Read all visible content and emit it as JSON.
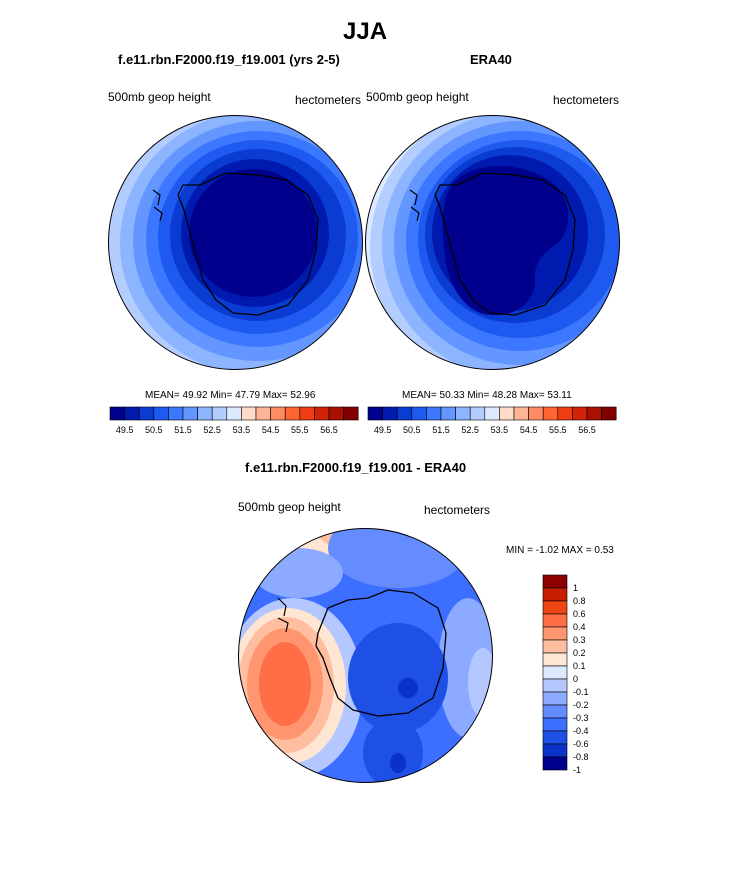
{
  "season": "JJA",
  "panels": [
    {
      "title": "f.e11.rbn.F2000.f19_f19.001 (yrs 2-5)",
      "variable": "500mb geop height",
      "units": "hectometers",
      "stats": {
        "mean_label": "MEAN=",
        "mean": "49.92",
        "min_label": "Min=",
        "min": "47.79",
        "max_label": "Max=",
        "max": "52.96"
      }
    },
    {
      "title": "ERA40",
      "variable": "500mb geop height",
      "units": "hectometers",
      "stats": {
        "mean_label": "MEAN=",
        "mean": "50.33",
        "min_label": "Min=",
        "min": "48.28",
        "max_label": "Max=",
        "max": "53.11"
      }
    }
  ],
  "abs_colorbar": {
    "colors": [
      "#00008c",
      "#001ab0",
      "#0a3cd2",
      "#1f5af0",
      "#3c78ff",
      "#6496ff",
      "#8cb4ff",
      "#b4cdff",
      "#dce9ff",
      "#ffdcc8",
      "#ffb496",
      "#ff8c64",
      "#ff6432",
      "#f03c14",
      "#d2230a",
      "#aa1000",
      "#820000"
    ],
    "ticks": [
      "49.5",
      "50.5",
      "51.5",
      "52.5",
      "53.5",
      "54.5",
      "55.5",
      "56.5"
    ]
  },
  "diff": {
    "title": "f.e11.rbn.F2000.f19_f19.001 - ERA40",
    "variable": "500mb geop height",
    "units": "hectometers",
    "minmax": {
      "min_label": "MIN =",
      "min": "-1.02",
      "max_label": "MAX =",
      "max": "0.53"
    }
  },
  "diff_colorbar": {
    "colors": [
      "#00008c",
      "#0a32c8",
      "#1e50e6",
      "#3c6eff",
      "#648cff",
      "#8caaff",
      "#b4c8ff",
      "#dce9ff",
      "#ffe6d2",
      "#ffbea0",
      "#ff9670",
      "#ff6e46",
      "#f04614",
      "#c81e00",
      "#8c0000"
    ],
    "labels": [
      "1",
      "0.8",
      "0.6",
      "0.4",
      "0.3",
      "0.2",
      "0.1",
      "0",
      "-0.1",
      "-0.2",
      "-0.3",
      "-0.4",
      "-0.6",
      "-0.8",
      "-1"
    ]
  }
}
